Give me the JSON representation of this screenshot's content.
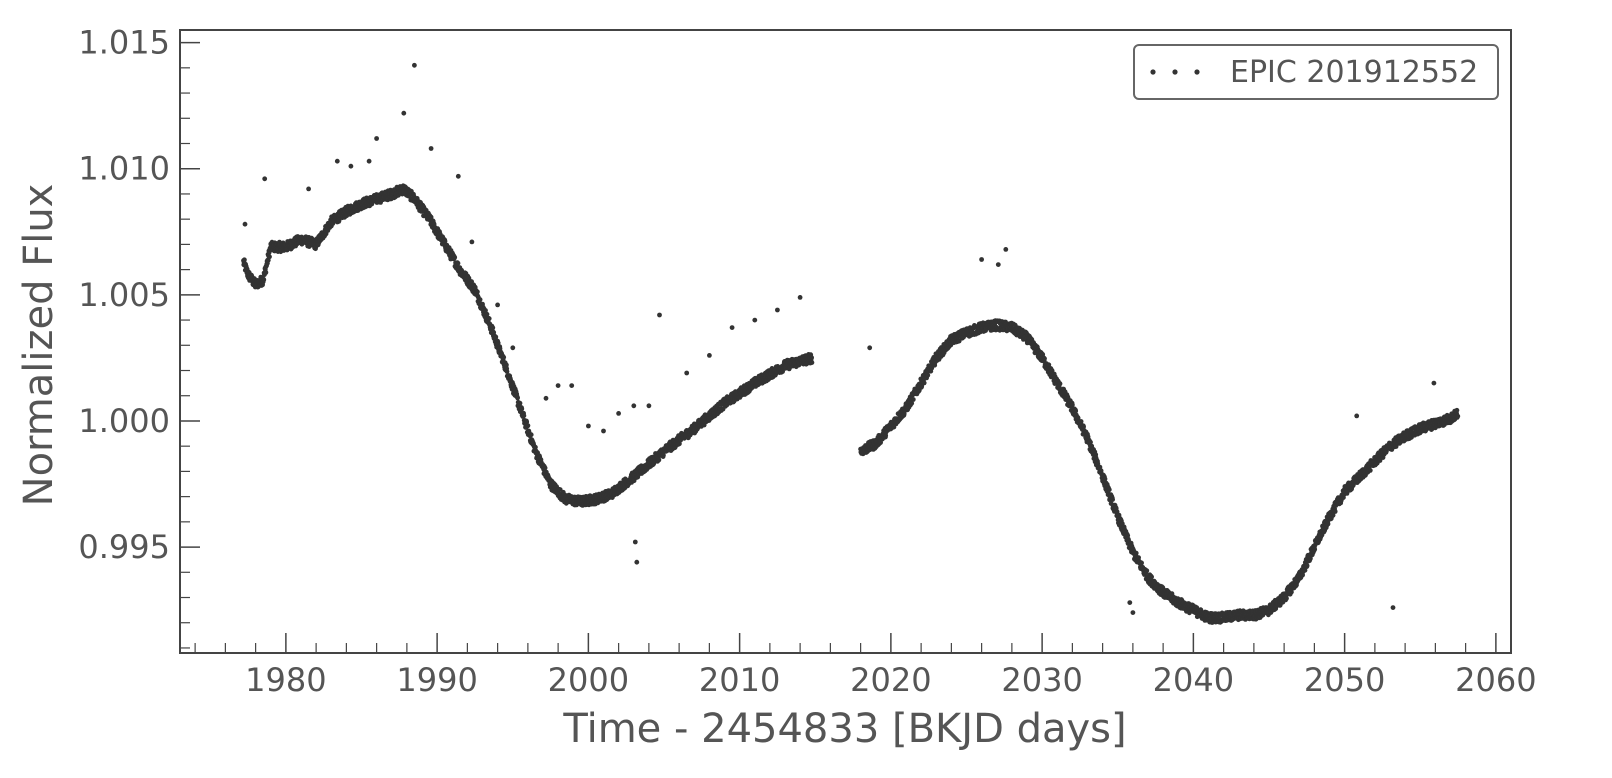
{
  "chart_data": {
    "type": "scatter",
    "xlabel": "Time - 2454833 [BKJD days]",
    "ylabel": "Normalized Flux",
    "xlim": [
      1973,
      2061
    ],
    "ylim": [
      0.9908,
      1.0155
    ],
    "x_ticks": [
      1980,
      1990,
      2000,
      2010,
      2020,
      2030,
      2040,
      2050,
      2060
    ],
    "x_tick_labels": [
      "1980",
      "1990",
      "2000",
      "2010",
      "2020",
      "2030",
      "2040",
      "2050",
      "2060"
    ],
    "y_ticks": [
      0.995,
      1.0,
      1.005,
      1.01,
      1.015
    ],
    "y_tick_labels": [
      "0.995",
      "1.000",
      "1.005",
      "1.010",
      "1.015"
    ],
    "grid": false,
    "legend": {
      "position": "top-right",
      "entries": [
        "EPIC 201912552"
      ]
    },
    "series": [
      {
        "name": "EPIC 201912552",
        "color": "#333333",
        "marker": "dot",
        "segments": [
          {
            "x": [
              1977.2,
              1977.5,
              1978.0,
              1978.5,
              1979.0,
              1980.0,
              1981.0,
              1982.0,
              1983.0,
              1984.0,
              1985.0,
              1986.0,
              1987.0,
              1987.8,
              1988.5,
              1989.5,
              1990.5,
              1991.5,
              1992.5,
              1993.5,
              1994.5,
              1995.5,
              1996.5,
              1997.5,
              1998.5,
              1999.5,
              2000.5,
              2001.5,
              2003.0,
              2005.0,
              2007.0,
              2009.0,
              2011.0,
              2013.0,
              2014.8
            ],
            "y": [
              1.0063,
              1.0058,
              1.0054,
              1.0056,
              1.0069,
              1.0069,
              1.0072,
              1.007,
              1.0079,
              1.0083,
              1.0086,
              1.0088,
              1.009,
              1.0092,
              1.0088,
              1.008,
              1.007,
              1.006,
              1.0052,
              1.0038,
              1.0022,
              1.0005,
              0.9988,
              0.9975,
              0.9969,
              0.9968,
              0.9969,
              0.9971,
              0.9978,
              0.9988,
              0.9997,
              1.0007,
              1.0015,
              1.0022,
              1.0025
            ]
          },
          {
            "x": [
              2018.0,
              2019.0,
              2020.0,
              2021.0,
              2022.0,
              2023.0,
              2024.0,
              2025.0,
              2026.0,
              2027.0,
              2028.0,
              2029.0,
              2030.0,
              2031.0,
              2032.0,
              2033.0,
              2034.0,
              2035.0,
              2036.0,
              2037.0,
              2038.0,
              2039.0,
              2040.0,
              2041.0,
              2042.0,
              2043.0,
              2044.0,
              2045.0,
              2046.0,
              2047.0,
              2048.0,
              2049.0,
              2050.0,
              2051.0,
              2052.0,
              2053.0,
              2054.0,
              2055.0,
              2056.0,
              2057.0,
              2057.5
            ],
            "y": [
              0.9988,
              0.9991,
              0.9998,
              1.0005,
              1.0015,
              1.0025,
              1.0032,
              1.0035,
              1.0037,
              1.0038,
              1.0037,
              1.0033,
              1.0025,
              1.0015,
              1.0005,
              0.9993,
              0.9978,
              0.9962,
              0.9948,
              0.9938,
              0.9932,
              0.9928,
              0.9925,
              0.9922,
              0.9922,
              0.9923,
              0.9923,
              0.9925,
              0.993,
              0.9938,
              0.995,
              0.9962,
              0.9972,
              0.9978,
              0.9984,
              0.999,
              0.9994,
              0.9997,
              0.9999,
              1.0001,
              1.0003
            ]
          }
        ],
        "outliers": {
          "x": [
            1977.3,
            1978.6,
            1981.5,
            1983.4,
            1984.3,
            1985.5,
            1986.0,
            1987.8,
            1988.5,
            1989.6,
            1991.4,
            1992.3,
            1994.0,
            1995.0,
            1997.2,
            1998.0,
            1998.9,
            2000.0,
            2001.0,
            2002.0,
            2003.0,
            2003.1,
            2003.2,
            2004.0,
            2004.7,
            2006.5,
            2008.0,
            2009.5,
            2011.0,
            2012.5,
            2014.0,
            2018.6,
            2026.0,
            2027.1,
            2027.6,
            2035.8,
            2036.0,
            2050.8,
            2053.2,
            2055.9
          ],
          "y": [
            1.0078,
            1.0096,
            1.0092,
            1.0103,
            1.0101,
            1.0103,
            1.0112,
            1.0122,
            1.0141,
            1.0108,
            1.0097,
            1.0071,
            1.0046,
            1.0029,
            1.0009,
            1.0014,
            1.0014,
            0.9998,
            0.9996,
            1.0003,
            1.0006,
            0.9952,
            0.9944,
            1.0006,
            1.0042,
            1.0019,
            1.0026,
            1.0037,
            1.004,
            1.0044,
            1.0049,
            1.0029,
            1.0064,
            1.0062,
            1.0068,
            0.9928,
            0.9924,
            1.0002,
            0.9926,
            1.0015
          ]
        }
      }
    ]
  }
}
